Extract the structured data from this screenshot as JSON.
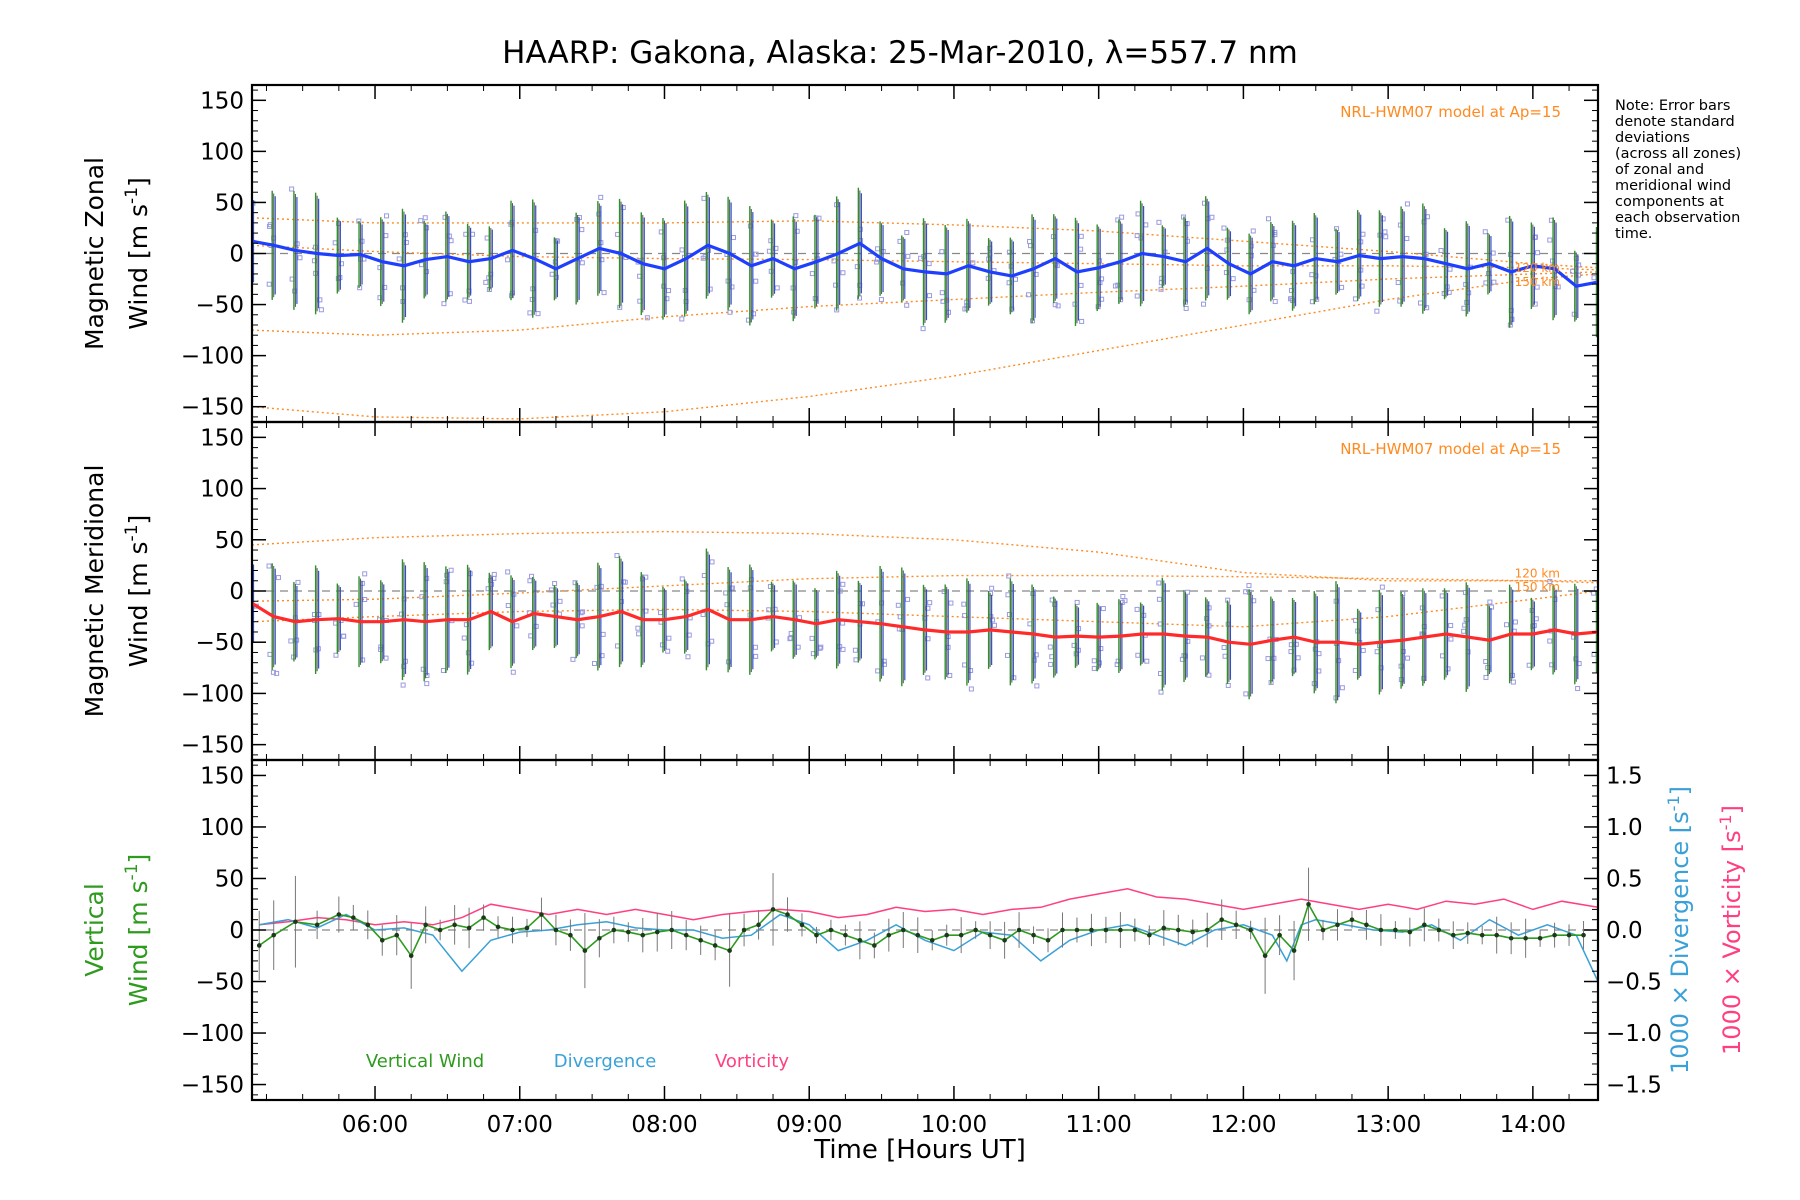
{
  "title": "HAARP: Gakona,  Alaska: 25-Mar-2010, λ=557.7 nm",
  "note_lines": [
    "Note: Error bars",
    "denote standard",
    "deviations",
    "(across all zones)",
    "of zonal and",
    "meridional wind",
    "components at",
    "each observation",
    "time."
  ],
  "x_axis": {
    "label": "Time [Hours UT]",
    "range_hours": [
      5.15,
      14.45
    ],
    "ticks": [
      6,
      7,
      8,
      9,
      10,
      11,
      12,
      13,
      14
    ],
    "tick_labels": [
      "06:00",
      "07:00",
      "08:00",
      "09:00",
      "10:00",
      "11:00",
      "12:00",
      "13:00",
      "14:00"
    ]
  },
  "y_ticks": [
    150,
    100,
    50,
    0,
    -50,
    -100,
    -150
  ],
  "y_tick_labels": [
    "150",
    "100",
    "50",
    "0",
    "−50",
    "−100",
    "−150"
  ],
  "right_axis": {
    "ticks": [
      1.5,
      1.0,
      0.5,
      0.0,
      -0.5,
      -1.0,
      -1.5
    ],
    "tick_labels": [
      "1.5",
      "1.0",
      "0.5",
      "0.0",
      "−0.5",
      "−1.0",
      "−1.5"
    ],
    "label_div_prefix": "1000 × Divergence [s",
    "label_vort_prefix": "1000 × Vorticity [s",
    "unit_suffix": "]",
    "superscript": "-1"
  },
  "panels": [
    {
      "id": "zonal",
      "ylabel_top": "Magnetic Zonal",
      "ylabel_bottom_prefix": "Wind [m s",
      "ylabel_sup": "-1",
      "ylabel_bottom_suffix": "]",
      "model_note": "NRL-HWM07 model at Ap=15",
      "km_labels": [
        "120 km",
        "150 km"
      ]
    },
    {
      "id": "meridional",
      "ylabel_top": "Magnetic Meridional",
      "ylabel_bottom_prefix": "Wind [m s",
      "ylabel_sup": "-1",
      "ylabel_bottom_suffix": "]",
      "model_note": "NRL-HWM07 model at Ap=15",
      "km_labels": [
        "120 km",
        "150 km"
      ]
    },
    {
      "id": "vertical",
      "ylabel_top": "Vertical",
      "ylabel_bottom_prefix": "Wind [m s",
      "ylabel_sup": "-1",
      "ylabel_bottom_suffix": "]",
      "legend": [
        "Vertical Wind",
        "Divergence",
        "Vorticity"
      ]
    }
  ],
  "colors": {
    "zonal": "#1f3fff",
    "meridional": "#ff2a2a",
    "vertical": "#2e9a1e",
    "divergence": "#3aa0d8",
    "vorticity": "#ff3f7f",
    "model": "#ff8a20",
    "scatter": "#9a9ae0",
    "errorbar_green": "#2f8f2f",
    "errorbar_blue": "#3050c8"
  },
  "chart_data": [
    {
      "type": "line",
      "panel": "zonal",
      "title": "HAARP: Gakona,  Alaska: 25-Mar-2010, λ=557.7 nm",
      "xlabel": "Time [Hours UT]",
      "ylabel": "Magnetic Zonal Wind [m s-1]",
      "ylim": [
        -165,
        165
      ],
      "series": [
        {
          "name": "zonal",
          "x": [
            5.15,
            5.3,
            5.45,
            5.6,
            5.75,
            5.9,
            6.05,
            6.2,
            6.35,
            6.5,
            6.65,
            6.8,
            6.95,
            7.1,
            7.25,
            7.4,
            7.55,
            7.7,
            7.85,
            8.0,
            8.15,
            8.3,
            8.45,
            8.6,
            8.75,
            8.9,
            9.05,
            9.2,
            9.35,
            9.5,
            9.65,
            9.8,
            9.95,
            10.1,
            10.25,
            10.4,
            10.55,
            10.7,
            10.85,
            11.0,
            11.15,
            11.3,
            11.45,
            11.6,
            11.75,
            11.9,
            12.05,
            12.2,
            12.35,
            12.5,
            12.65,
            12.8,
            12.95,
            13.1,
            13.25,
            13.4,
            13.55,
            13.7,
            13.85,
            14.0,
            14.15,
            14.3,
            14.45
          ],
          "y": [
            12,
            8,
            3,
            0,
            -2,
            -1,
            -8,
            -12,
            -6,
            -3,
            -8,
            -5,
            3,
            -5,
            -15,
            -5,
            5,
            0,
            -10,
            -15,
            -5,
            8,
            0,
            -12,
            -5,
            -15,
            -8,
            0,
            10,
            -5,
            -15,
            -18,
            -20,
            -12,
            -18,
            -22,
            -15,
            -5,
            -18,
            -14,
            -8,
            0,
            -3,
            -8,
            5,
            -10,
            -20,
            -8,
            -12,
            -5,
            -8,
            -2,
            -5,
            -3,
            -5,
            -10,
            -15,
            -10,
            -18,
            -12,
            -15,
            -32,
            -28
          ]
        },
        {
          "name": "model_120_lower",
          "x": [
            5.15,
            6.0,
            7.0,
            8.0,
            9.0,
            10.0,
            11.0,
            12.0,
            13.0,
            14.0,
            14.45
          ],
          "y": [
            -75,
            -80,
            -75,
            -62,
            -52,
            -45,
            -38,
            -32,
            -25,
            -20,
            -18
          ]
        },
        {
          "name": "model_150_lower",
          "x": [
            5.15,
            6.0,
            7.0,
            8.0,
            9.0,
            10.0,
            11.0,
            12.0,
            13.0,
            14.0,
            14.45
          ],
          "y": [
            -150,
            -160,
            -162,
            -155,
            -140,
            -120,
            -95,
            -70,
            -45,
            -25,
            -20
          ]
        },
        {
          "name": "model_120_upper",
          "x": [
            5.15,
            6.0,
            7.0,
            8.0,
            9.0,
            10.0,
            11.0,
            12.0,
            13.0,
            14.0,
            14.45
          ],
          "y": [
            35,
            30,
            30,
            30,
            32,
            28,
            22,
            12,
            2,
            -10,
            -14
          ]
        },
        {
          "name": "model_150_upper",
          "x": [
            5.15,
            6.0,
            7.0,
            8.0,
            9.0,
            10.0,
            11.0,
            12.0,
            13.0,
            14.0,
            14.45
          ],
          "y": [
            8,
            2,
            -3,
            -5,
            -6,
            -8,
            -10,
            -12,
            -12,
            -14,
            -16
          ]
        }
      ]
    },
    {
      "type": "line",
      "panel": "meridional",
      "xlabel": "Time [Hours UT]",
      "ylabel": "Magnetic Meridional Wind [m s-1]",
      "ylim": [
        -165,
        165
      ],
      "series": [
        {
          "name": "meridional",
          "x": [
            5.15,
            5.3,
            5.45,
            5.6,
            5.75,
            5.9,
            6.05,
            6.2,
            6.35,
            6.5,
            6.65,
            6.8,
            6.95,
            7.1,
            7.25,
            7.4,
            7.55,
            7.7,
            7.85,
            8.0,
            8.15,
            8.3,
            8.45,
            8.6,
            8.75,
            8.9,
            9.05,
            9.2,
            9.35,
            9.5,
            9.65,
            9.8,
            9.95,
            10.1,
            10.25,
            10.4,
            10.55,
            10.7,
            10.85,
            11.0,
            11.15,
            11.3,
            11.45,
            11.6,
            11.75,
            11.9,
            12.05,
            12.2,
            12.35,
            12.5,
            12.65,
            12.8,
            12.95,
            13.1,
            13.25,
            13.4,
            13.55,
            13.7,
            13.85,
            14.0,
            14.15,
            14.3,
            14.45
          ],
          "y": [
            -12,
            -25,
            -30,
            -28,
            -27,
            -30,
            -30,
            -28,
            -30,
            -28,
            -28,
            -20,
            -30,
            -22,
            -25,
            -28,
            -25,
            -20,
            -28,
            -28,
            -25,
            -18,
            -28,
            -28,
            -25,
            -28,
            -32,
            -28,
            -30,
            -32,
            -35,
            -38,
            -40,
            -40,
            -38,
            -40,
            -42,
            -45,
            -44,
            -45,
            -44,
            -42,
            -42,
            -44,
            -45,
            -50,
            -52,
            -48,
            -45,
            -50,
            -50,
            -52,
            -50,
            -48,
            -45,
            -42,
            -45,
            -48,
            -42,
            -42,
            -38,
            -42,
            -40
          ]
        },
        {
          "name": "model_upper",
          "x": [
            5.15,
            6.0,
            7.0,
            8.0,
            9.0,
            10.0,
            11.0,
            12.0,
            13.0,
            14.0,
            14.45
          ],
          "y": [
            45,
            52,
            56,
            58,
            56,
            50,
            38,
            18,
            10,
            10,
            10
          ]
        },
        {
          "name": "model_mid",
          "x": [
            5.15,
            6.0,
            7.0,
            8.0,
            9.0,
            10.0,
            11.0,
            12.0,
            13.0,
            14.0,
            14.45
          ],
          "y": [
            -10,
            -8,
            -2,
            5,
            12,
            15,
            15,
            14,
            12,
            10,
            8
          ]
        },
        {
          "name": "model_lower",
          "x": [
            5.15,
            6.0,
            7.0,
            8.0,
            9.0,
            10.0,
            11.0,
            12.0,
            13.0,
            14.0,
            14.45
          ],
          "y": [
            -30,
            -25,
            -20,
            -18,
            -20,
            -25,
            -30,
            -35,
            -25,
            -8,
            0
          ]
        }
      ]
    },
    {
      "type": "line",
      "panel": "vertical",
      "xlabel": "Time [Hours UT]",
      "ylabel": "Vertical Wind [m s-1]",
      "ylim": [
        -165,
        165
      ],
      "y2label": "1000 x Divergence / Vorticity [s-1]",
      "y2lim": [
        -1.65,
        1.65
      ],
      "series": [
        {
          "name": "Vertical Wind",
          "x": [
            5.2,
            5.3,
            5.45,
            5.6,
            5.75,
            5.85,
            5.95,
            6.05,
            6.15,
            6.25,
            6.35,
            6.45,
            6.55,
            6.65,
            6.75,
            6.85,
            6.95,
            7.05,
            7.15,
            7.25,
            7.35,
            7.45,
            7.55,
            7.65,
            7.75,
            7.85,
            7.95,
            8.05,
            8.15,
            8.25,
            8.35,
            8.45,
            8.55,
            8.65,
            8.75,
            8.85,
            8.95,
            9.05,
            9.15,
            9.25,
            9.35,
            9.45,
            9.55,
            9.65,
            9.75,
            9.85,
            9.95,
            10.05,
            10.15,
            10.25,
            10.35,
            10.45,
            10.55,
            10.65,
            10.75,
            10.85,
            10.95,
            11.05,
            11.15,
            11.25,
            11.35,
            11.45,
            11.55,
            11.65,
            11.75,
            11.85,
            11.95,
            12.05,
            12.15,
            12.25,
            12.35,
            12.45,
            12.55,
            12.65,
            12.75,
            12.85,
            12.95,
            13.05,
            13.15,
            13.25,
            13.35,
            13.45,
            13.55,
            13.65,
            13.75,
            13.85,
            13.95,
            14.05,
            14.15,
            14.25,
            14.35
          ],
          "y": [
            -15,
            -5,
            8,
            5,
            15,
            12,
            5,
            -10,
            -5,
            -25,
            5,
            0,
            5,
            2,
            12,
            3,
            0,
            2,
            15,
            0,
            -5,
            -20,
            -8,
            0,
            -2,
            -5,
            -2,
            0,
            -5,
            -10,
            -15,
            -20,
            0,
            5,
            20,
            15,
            5,
            -5,
            0,
            -5,
            -10,
            -15,
            -5,
            0,
            -5,
            -10,
            -5,
            -5,
            0,
            -5,
            -10,
            0,
            -5,
            -10,
            0,
            0,
            0,
            0,
            0,
            0,
            -5,
            2,
            0,
            -2,
            0,
            10,
            5,
            0,
            -25,
            -5,
            -20,
            25,
            0,
            5,
            10,
            5,
            0,
            0,
            -2,
            5,
            0,
            -5,
            -3,
            -5,
            -5,
            -8,
            -8,
            -8,
            -5,
            -5,
            -5
          ]
        },
        {
          "name": "Divergence",
          "x": [
            5.2,
            5.4,
            5.6,
            5.8,
            6.0,
            6.2,
            6.4,
            6.6,
            6.8,
            7.0,
            7.2,
            7.4,
            7.6,
            7.8,
            8.0,
            8.2,
            8.4,
            8.6,
            8.8,
            9.0,
            9.2,
            9.4,
            9.6,
            9.8,
            10.0,
            10.2,
            10.4,
            10.6,
            10.8,
            11.0,
            11.2,
            11.4,
            11.6,
            11.8,
            12.0,
            12.2,
            12.3,
            12.4,
            12.5,
            12.7,
            12.9,
            13.1,
            13.3,
            13.5,
            13.7,
            13.9,
            14.1,
            14.3,
            14.45
          ],
          "y": [
            0.05,
            0.1,
            0.02,
            0.15,
            0.0,
            0.02,
            -0.05,
            -0.4,
            -0.1,
            -0.02,
            0.0,
            0.05,
            0.08,
            0.02,
            0.0,
            0.0,
            -0.08,
            -0.05,
            0.15,
            0.05,
            -0.2,
            -0.1,
            0.05,
            -0.1,
            -0.2,
            -0.02,
            -0.05,
            -0.3,
            -0.1,
            0.0,
            0.05,
            -0.05,
            -0.15,
            0.0,
            0.05,
            -0.05,
            -0.3,
            0.05,
            0.1,
            0.05,
            0.0,
            -0.02,
            0.05,
            -0.1,
            0.1,
            -0.05,
            0.05,
            -0.05,
            -0.5
          ]
        },
        {
          "name": "Vorticity",
          "x": [
            5.2,
            5.4,
            5.6,
            5.8,
            6.0,
            6.2,
            6.4,
            6.6,
            6.8,
            7.0,
            7.2,
            7.4,
            7.6,
            7.8,
            8.0,
            8.2,
            8.4,
            8.6,
            8.8,
            9.0,
            9.2,
            9.4,
            9.6,
            9.8,
            10.0,
            10.2,
            10.4,
            10.6,
            10.8,
            11.0,
            11.2,
            11.4,
            11.6,
            11.8,
            12.0,
            12.2,
            12.4,
            12.6,
            12.8,
            13.0,
            13.2,
            13.4,
            13.6,
            13.8,
            14.0,
            14.2,
            14.45
          ],
          "y": [
            0.05,
            0.08,
            0.12,
            0.1,
            0.05,
            0.08,
            0.05,
            0.12,
            0.25,
            0.2,
            0.15,
            0.2,
            0.15,
            0.2,
            0.15,
            0.1,
            0.15,
            0.18,
            0.2,
            0.18,
            0.12,
            0.15,
            0.22,
            0.18,
            0.2,
            0.15,
            0.2,
            0.22,
            0.3,
            0.35,
            0.4,
            0.32,
            0.3,
            0.25,
            0.2,
            0.25,
            0.3,
            0.25,
            0.2,
            0.25,
            0.2,
            0.28,
            0.25,
            0.3,
            0.2,
            0.28,
            0.22
          ]
        }
      ]
    }
  ]
}
